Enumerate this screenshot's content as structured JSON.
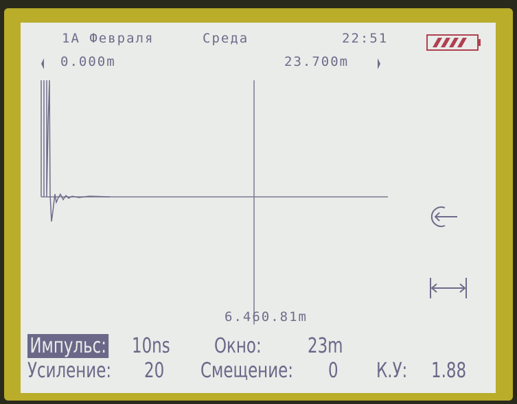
{
  "header": {
    "date": "1A Февраля",
    "weekday": "Среда",
    "time": "22:51"
  },
  "range": {
    "start": "0.000m",
    "end": "23.700m"
  },
  "cursor": {
    "distance": "6.460.81m"
  },
  "settings": {
    "pulse_label": "Импульс:",
    "pulse_value": "10ns",
    "window_label": "Окно:",
    "window_value": "23m",
    "gain_label": "Усиление:",
    "gain_value": "20",
    "offset_label": "Смещение:",
    "offset_value": "0",
    "ku_label": "К.У:",
    "ku_value": "1.88"
  }
}
